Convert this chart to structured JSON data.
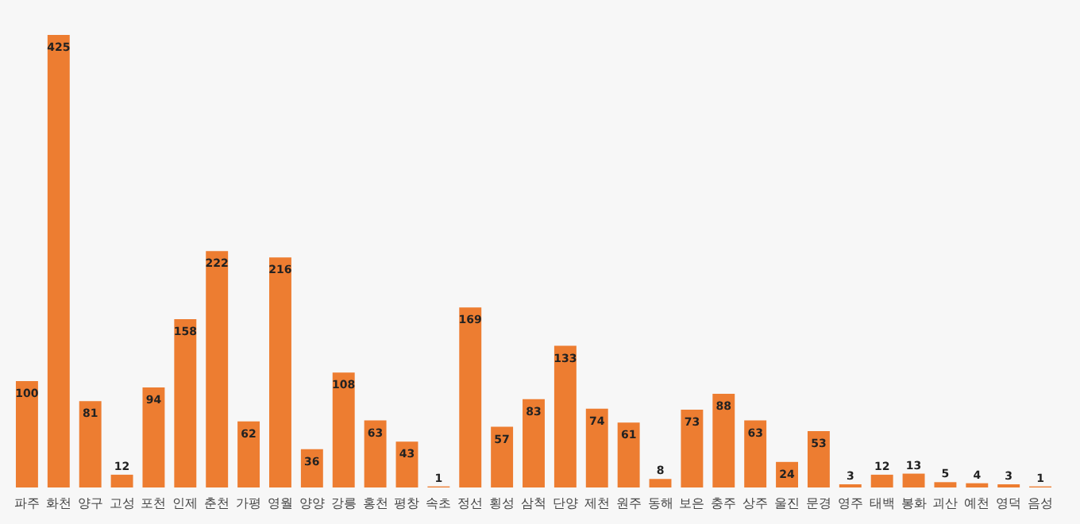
{
  "chart_data": {
    "type": "bar",
    "categories": [
      "파주",
      "화천",
      "양구",
      "고성",
      "포천",
      "인제",
      "춘천",
      "가평",
      "영월",
      "양양",
      "강릉",
      "홍천",
      "평창",
      "속초",
      "정선",
      "횡성",
      "삼척",
      "단양",
      "제천",
      "원주",
      "동해",
      "보은",
      "충주",
      "상주",
      "울진",
      "문경",
      "영주",
      "태백",
      "봉화",
      "괴산",
      "예천",
      "영덕",
      "음성"
    ],
    "values": [
      100,
      425,
      81,
      12,
      94,
      158,
      222,
      62,
      216,
      36,
      108,
      63,
      43,
      1,
      169,
      57,
      83,
      133,
      74,
      61,
      8,
      73,
      88,
      63,
      24,
      53,
      3,
      12,
      13,
      5,
      4,
      3,
      1
    ],
    "color": "#ed7d31",
    "data_labels": true,
    "grid": false
  }
}
